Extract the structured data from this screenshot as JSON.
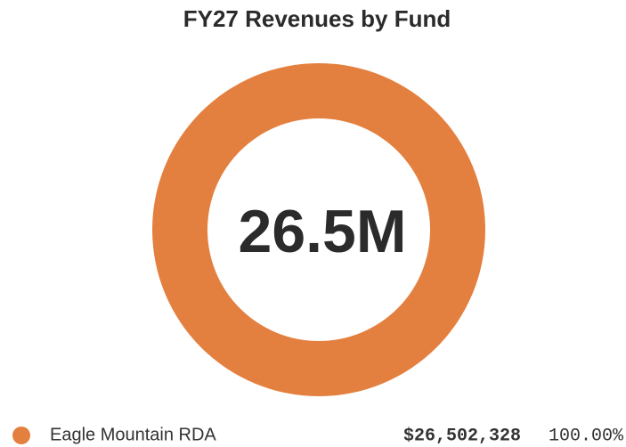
{
  "chart_data": {
    "type": "donut",
    "title": "FY27 Revenues by Fund",
    "center_label": "26.5M",
    "categories": [
      "Eagle Mountain RDA"
    ],
    "values": [
      26502328
    ],
    "value_labels": [
      "$26,502,328"
    ],
    "percent_labels": [
      "100.00%"
    ],
    "colors": [
      "#e4803f"
    ]
  }
}
